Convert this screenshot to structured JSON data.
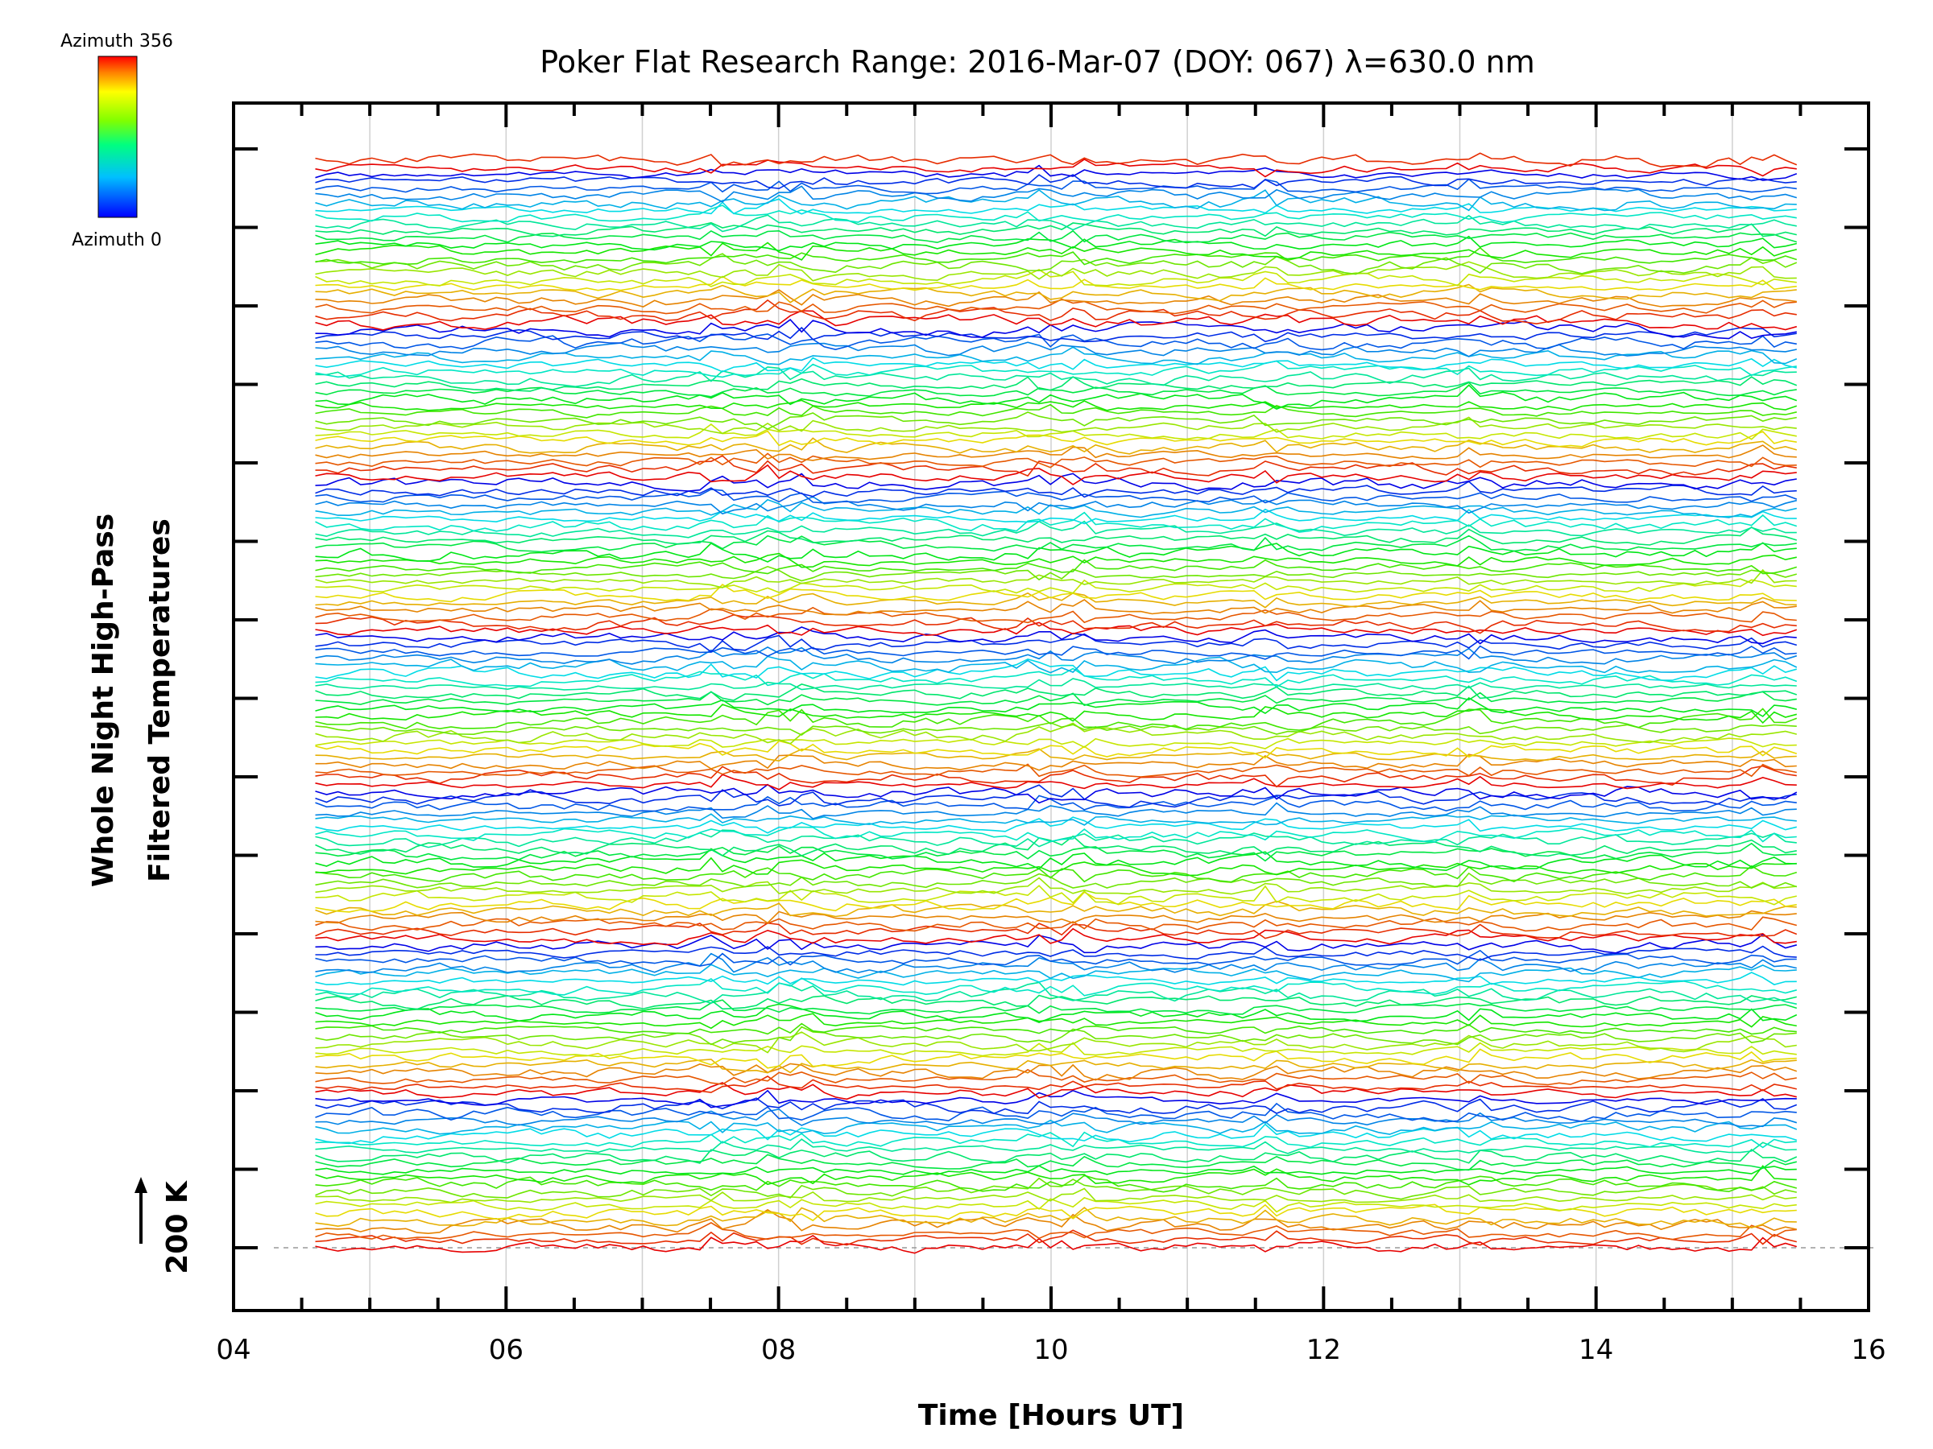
{
  "chart_data": {
    "type": "line",
    "title": "Poker Flat Research Range: 2016-Mar-07 (DOY: 067) λ=630.0 nm",
    "xlabel": "Time [Hours UT]",
    "ylabel_line1": "Whole Night High-Pass",
    "ylabel_line2": "Filtered Temperatures",
    "xlim": [
      4,
      16
    ],
    "x_ticks": [
      "04",
      "06",
      "08",
      "10",
      "12",
      "14",
      "16"
    ],
    "x_minor_step": 0.5,
    "x_gridlines": [
      5,
      6,
      7,
      8,
      9,
      10,
      11,
      12,
      13,
      14,
      15
    ],
    "time_range": [
      4.6,
      15.5
    ],
    "time_step": 0.083,
    "scale_bar_label": "200 K",
    "baseline": 0,
    "trace_count": 156,
    "trace_spacing_label_units": "offset stacked",
    "y_tick_count": 15,
    "colorbar": {
      "top_label": "Azimuth 356",
      "bottom_label": "Azimuth 0",
      "colors": [
        "#ff0000",
        "#ff8000",
        "#ffff00",
        "#80ff00",
        "#00ff80",
        "#00ffff",
        "#0080ff",
        "#0000ff"
      ]
    },
    "grid": "vertical, light gray",
    "notes": "Stacked high-pass filtered temperature traces, color-coded by azimuth (blue=0, red=356)"
  }
}
